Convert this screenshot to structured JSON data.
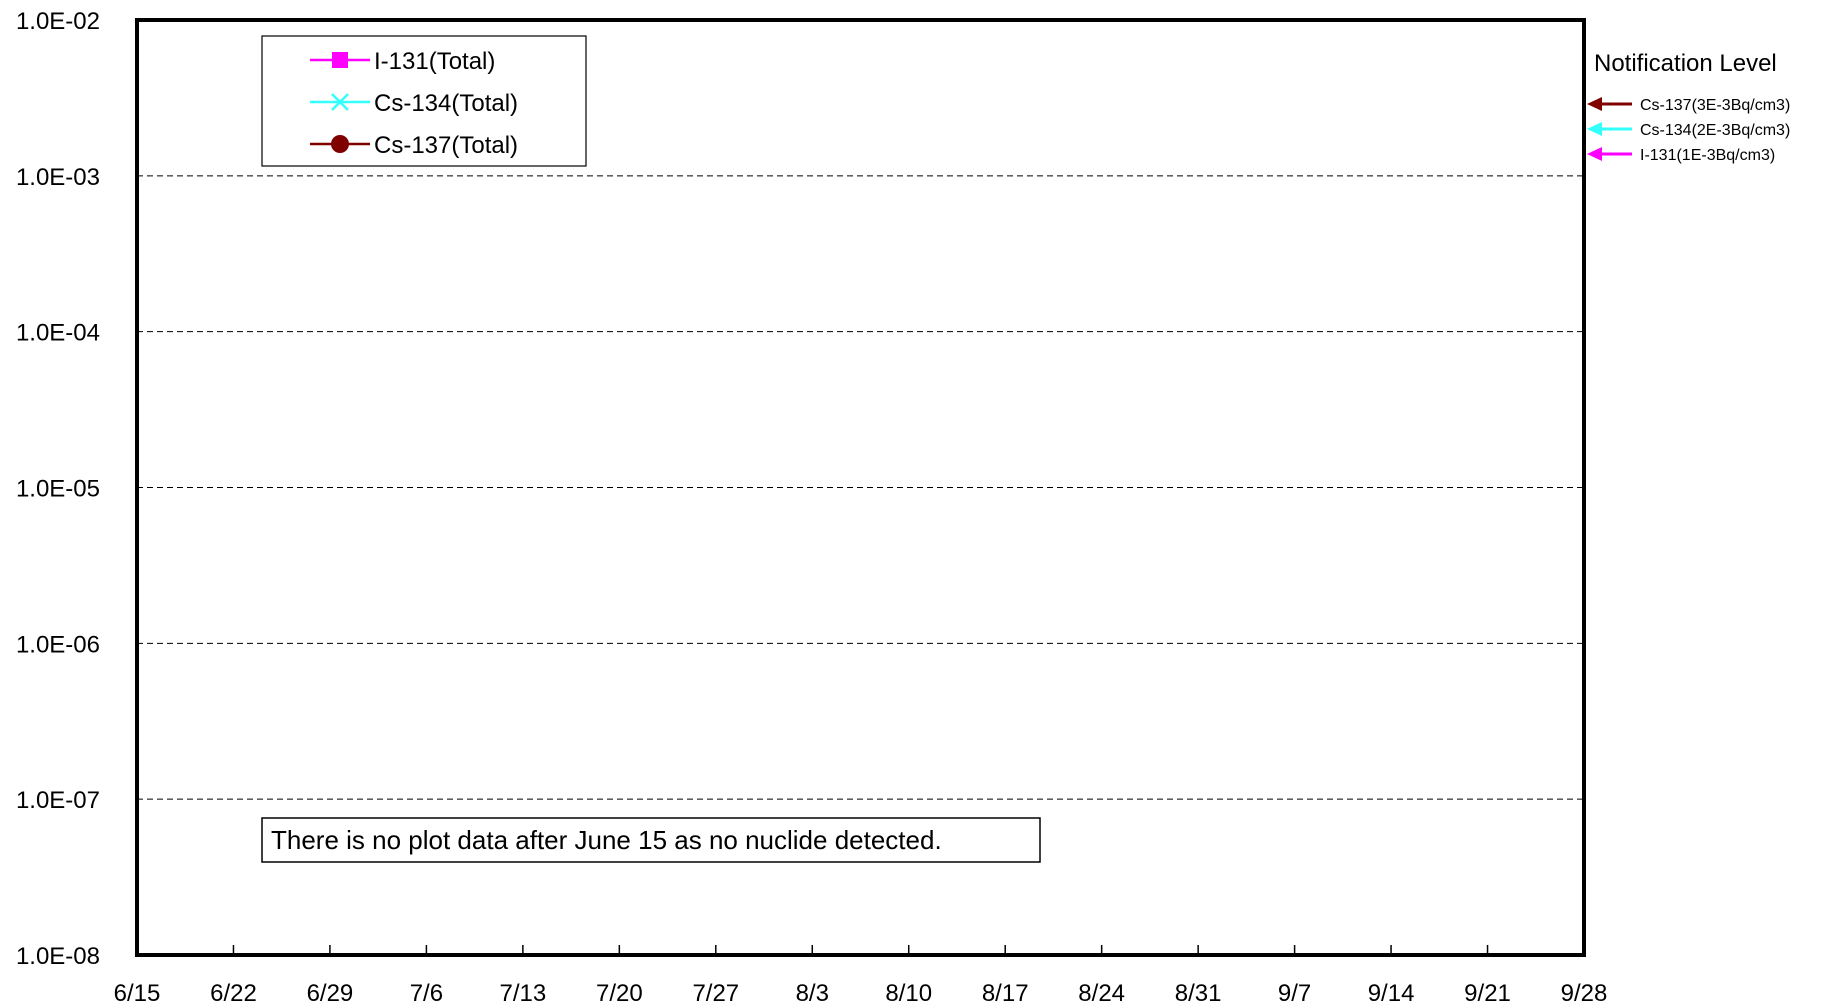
{
  "chart_data": {
    "type": "line",
    "x_axis": {
      "categories": [
        "6/15",
        "6/22",
        "6/29",
        "7/6",
        "7/13",
        "7/20",
        "7/27",
        "8/3",
        "8/10",
        "8/17",
        "8/24",
        "8/31",
        "9/7",
        "9/14",
        "9/21",
        "9/28"
      ]
    },
    "y_axis": {
      "scale": "log",
      "ylim": [
        1e-08,
        0.01
      ],
      "tick_labels": [
        "1.0E-02",
        "1.0E-03",
        "1.0E-04",
        "1.0E-05",
        "1.0E-06",
        "1.0E-07",
        "1.0E-08"
      ]
    },
    "grid": "horizontal-dashed",
    "legend_position": "top-left",
    "series": [
      {
        "name": "I-131(Total)",
        "color": "#ff00ff",
        "marker": "square",
        "values": []
      },
      {
        "name": "Cs-134(Total)",
        "color": "#33ffff",
        "marker": "x",
        "values": []
      },
      {
        "name": "Cs-137(Total)",
        "color": "#800000",
        "marker": "circle",
        "values": []
      }
    ],
    "notification_level": {
      "title": "Notification Level",
      "items": [
        {
          "label": "Cs-137(3E-3Bq/cm3)",
          "color": "#800000",
          "value": 0.003
        },
        {
          "label": "Cs-134(2E-3Bq/cm3)",
          "color": "#33ffff",
          "value": 0.002
        },
        {
          "label": "I-131(1E-3Bq/cm3)",
          "color": "#ff00ff",
          "value": 0.001
        }
      ]
    },
    "annotation": "There is no plot data after June 15 as no nuclide detected."
  }
}
